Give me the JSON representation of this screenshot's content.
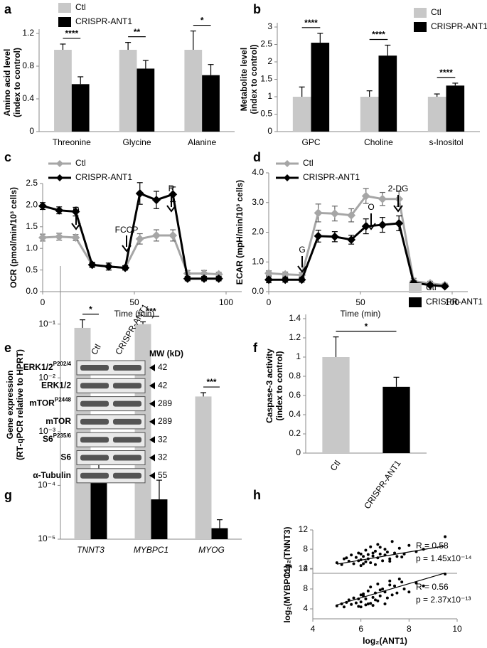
{
  "panel_labels": [
    "a",
    "b",
    "c",
    "d",
    "e",
    "f",
    "g",
    "h"
  ],
  "chart_data": [
    {
      "type": "bar",
      "y_label": [
        "Amino acid level",
        "(index to control)"
      ],
      "categories": [
        "Threonine",
        "Glycine",
        "Alanine"
      ],
      "series": [
        {
          "name": "Ctl",
          "color": "#c8c8c8",
          "values": [
            1,
            1,
            1
          ],
          "errors": [
            0.07,
            0.09,
            0.23
          ]
        },
        {
          "name": "CRISPR-ANT1",
          "color": "#000000",
          "values": [
            0.58,
            0.77,
            0.69
          ],
          "errors": [
            0.09,
            0.1,
            0.13
          ]
        }
      ],
      "significance": [
        "****",
        "**",
        "*"
      ],
      "ylim": [
        0,
        1.2
      ],
      "yticks": [
        0,
        0.4,
        0.8,
        1.2
      ]
    },
    {
      "type": "bar",
      "y_label": [
        "Metabolite level",
        "(index to control)"
      ],
      "categories": [
        "GPC",
        "Choline",
        "s-Inositol"
      ],
      "series": [
        {
          "name": "Ctl",
          "color": "#c8c8c8",
          "values": [
            1,
            1,
            1
          ],
          "errors": [
            0.28,
            0.17,
            0.08
          ]
        },
        {
          "name": "CRISPR-ANT1",
          "color": "#000000",
          "values": [
            2.55,
            2.18,
            1.32
          ],
          "errors": [
            0.27,
            0.3,
            0.07
          ]
        }
      ],
      "significance": [
        "****",
        "****",
        "****"
      ],
      "ylim": [
        0,
        3
      ],
      "yticks": [
        0,
        0.5,
        1,
        1.5,
        2,
        2.5,
        3
      ]
    },
    {
      "type": "line",
      "y_label": [
        "OCR (pmol/min/10³ cells)"
      ],
      "x_label": "Time (min)",
      "x": [
        0,
        9,
        18,
        27,
        36,
        45,
        53,
        62,
        71,
        79,
        88,
        96
      ],
      "series": [
        {
          "name": "Ctl",
          "color": "#a6a6a6",
          "values": [
            1.25,
            1.27,
            1.25,
            0.62,
            0.58,
            0.55,
            1.22,
            1.3,
            1.3,
            0.42,
            0.42,
            0.4
          ],
          "errors": [
            0.08,
            0.08,
            0.07,
            0.05,
            0.08,
            0.05,
            0.12,
            0.13,
            0.13,
            0.07,
            0.07,
            0.05
          ]
        },
        {
          "name": "CRISPR-ANT1",
          "color": "#000000",
          "values": [
            1.98,
            1.88,
            1.85,
            0.62,
            0.58,
            0.55,
            2.27,
            2.12,
            2.25,
            0.3,
            0.3,
            0.3
          ],
          "errors": [
            0.08,
            0.08,
            0.1,
            0.06,
            0.08,
            0.05,
            0.25,
            0.2,
            0.17,
            0.05,
            0.05,
            0.05
          ]
        }
      ],
      "annotations": [
        "O",
        "FCCP",
        "R"
      ],
      "xlim": [
        0,
        100
      ],
      "xticks": [
        0,
        50,
        100
      ],
      "ylim": [
        0,
        2.5
      ],
      "yticks": [
        {
          "value": 0,
          "label": "0.0"
        },
        0.5,
        {
          "value": 1,
          "label": "1.0"
        },
        1.5,
        {
          "value": 2,
          "label": "2.0"
        },
        2.5
      ]
    },
    {
      "type": "line",
      "y_label": [
        "ECAR (mpH/min/10³ cells)"
      ],
      "x_label": "Time (min)",
      "x": [
        0,
        9,
        18,
        27,
        36,
        45,
        53,
        62,
        71,
        79,
        88,
        96
      ],
      "series": [
        {
          "name": "Ctl",
          "color": "#a6a6a6",
          "values": [
            0.62,
            0.58,
            0.56,
            2.65,
            2.63,
            2.57,
            3.22,
            3.12,
            3.12,
            0.35,
            0.28,
            0.22
          ],
          "errors": [
            0.08,
            0.08,
            0.08,
            0.3,
            0.25,
            0.22,
            0.25,
            0.22,
            0.25,
            0.1,
            0.07,
            0.06
          ]
        },
        {
          "name": "CRISPR-ANT1",
          "color": "#000000",
          "values": [
            0.4,
            0.4,
            0.4,
            1.87,
            1.85,
            1.75,
            2.2,
            2.25,
            2.3,
            0.3,
            0.22,
            0.18
          ],
          "errors": [
            0.1,
            0.08,
            0.08,
            0.2,
            0.17,
            0.15,
            0.25,
            0.25,
            0.25,
            0.06,
            0.05,
            0.05
          ]
        }
      ],
      "annotations": [
        "G",
        "O",
        "2-DG"
      ],
      "xlim": [
        0,
        100
      ],
      "xticks": [
        0,
        50,
        100
      ],
      "ylim": [
        0,
        4
      ],
      "yticks": [
        {
          "value": 0,
          "label": "0.0"
        },
        {
          "value": 1,
          "label": "1.0"
        },
        {
          "value": 2,
          "label": "2.0"
        },
        {
          "value": 3,
          "label": "3.0"
        },
        {
          "value": 4,
          "label": "4.0"
        }
      ]
    },
    {
      "type": "bar",
      "y_label": [
        "Caspase-3 activity",
        "(index to control)"
      ],
      "categories": [
        "Ctl",
        "CRISPR-ANT1"
      ],
      "rotated_labels": true,
      "values": [
        1,
        0.69
      ],
      "errors": [
        0.21,
        0.1
      ],
      "colors": [
        "#c8c8c8",
        "#000000"
      ],
      "significance": [
        "*"
      ],
      "ylim": [
        0,
        1.4
      ],
      "yticks": [
        0,
        0.2,
        0.4,
        0.6,
        0.8,
        1,
        1.2,
        1.4
      ]
    },
    {
      "type": "bar",
      "y_label": [
        "Gene expression",
        "(RT-qPCR relative to HPRT)"
      ],
      "categories": [
        "TNNT3",
        "MYBPC1",
        "MYOG"
      ],
      "italic_labels": true,
      "log_scale": true,
      "series": [
        {
          "name": "Ctl",
          "color": "#c8c8c8",
          "values": [
            0.085,
            0.1,
            0.0045
          ],
          "errors": [
            0.035,
            0.01,
            0.0008
          ]
        },
        {
          "name": "CRISPR-ANT1",
          "color": "#000000",
          "values": [
            0.00017,
            5.5e-05,
            1.6e-05
          ],
          "errors": [
            0.00019,
            7e-05,
            7e-06
          ]
        }
      ],
      "significance": [
        "*",
        "***",
        "***"
      ],
      "ylim": [
        1e-05,
        1
      ],
      "yticks": [
        {
          "value": 1e-05,
          "label": "10⁻⁵"
        },
        {
          "value": 0.0001,
          "label": "10⁻⁴"
        },
        {
          "value": 0.001,
          "label": "10⁻³"
        },
        {
          "value": 0.01,
          "label": "10⁻²"
        },
        {
          "value": 0.1,
          "label": "10⁻¹"
        }
      ]
    },
    {
      "type": "scatter",
      "y_label": [
        "log₂(TNNT3)"
      ],
      "color": "#000000",
      "x": [
        5.0,
        5.2,
        5.3,
        5.5,
        5.6,
        5.7,
        5.8,
        5.9,
        6.0,
        6.0,
        6.1,
        6.2,
        6.2,
        6.3,
        6.4,
        6.4,
        6.5,
        6.5,
        6.6,
        6.7,
        6.7,
        6.8,
        6.9,
        7.0,
        7.0,
        7.1,
        7.2,
        7.3,
        7.4,
        7.5,
        7.6,
        7.8,
        8.0,
        8.3,
        8.6,
        9.5,
        5.4,
        6.1,
        6.6,
        7.2,
        6.3,
        5.9,
        6.8,
        7.7,
        6.0
      ],
      "y": [
        5.2,
        4.8,
        6.0,
        5.5,
        6.8,
        5.0,
        6.3,
        7.2,
        5.8,
        4.6,
        6.5,
        7.8,
        5.4,
        6.0,
        8.5,
        5.2,
        6.6,
        7.2,
        4.8,
        6.2,
        9.0,
        7.0,
        5.6,
        6.8,
        8.0,
        7.4,
        6.0,
        9.6,
        7.2,
        6.5,
        8.2,
        7.0,
        8.8,
        7.5,
        8.0,
        10.6,
        6.2,
        5.0,
        7.6,
        5.5,
        6.9,
        5.6,
        8.4,
        6.4,
        7.0
      ],
      "fit": {
        "x": [
          5,
          9.5
        ],
        "y": [
          4.9,
          8.7
        ]
      },
      "annotations": [
        "R = 0.58",
        "p = 1.45x10⁻¹⁴"
      ],
      "xlim": [
        4,
        10
      ],
      "ylim": [
        3,
        12
      ],
      "yticks": [
        4,
        8,
        12
      ]
    },
    {
      "type": "scatter",
      "y_label": [
        "log₂(MYBPC1)"
      ],
      "x_label": "log₂(ANT1)",
      "color": "#000000",
      "x": [
        5.0,
        5.2,
        5.3,
        5.5,
        5.6,
        5.7,
        5.8,
        5.9,
        6.0,
        6.0,
        6.1,
        6.2,
        6.2,
        6.3,
        6.4,
        6.4,
        6.5,
        6.5,
        6.6,
        6.7,
        6.7,
        6.8,
        6.9,
        7.0,
        7.0,
        7.1,
        7.2,
        7.3,
        7.4,
        7.5,
        7.6,
        7.8,
        8.0,
        8.3,
        8.6,
        9.5,
        5.4,
        6.1,
        6.6,
        7.2,
        6.3,
        5.9,
        6.8,
        7.7,
        6.0
      ],
      "y": [
        4.6,
        5.0,
        4.4,
        5.8,
        4.9,
        6.2,
        5.2,
        4.5,
        6.8,
        5.4,
        7.0,
        4.8,
        6.0,
        7.6,
        5.1,
        8.4,
        6.3,
        4.7,
        7.2,
        5.6,
        9.0,
        6.6,
        8.0,
        5.0,
        7.4,
        6.2,
        9.6,
        6.8,
        8.6,
        7.2,
        10.0,
        8.0,
        7.4,
        9.2,
        8.6,
        11.0,
        5.3,
        6.6,
        5.8,
        8.8,
        5.0,
        6.0,
        7.8,
        9.4,
        4.4
      ],
      "fit": {
        "x": [
          5,
          9.5
        ],
        "y": [
          4.8,
          11.2
        ]
      },
      "annotations": [
        "R = 0.56",
        "p = 2.37x10⁻¹³"
      ],
      "xlim": [
        4,
        10
      ],
      "xticks": [
        4,
        6,
        8,
        10
      ],
      "ylim": [
        2,
        12
      ],
      "yticks": [
        4,
        8,
        12
      ]
    }
  ],
  "blot": {
    "lanes": [
      "Ctl",
      "CRISPR-ANT1"
    ],
    "mw_header": "MW (kD)",
    "rows": [
      {
        "label": "ERK1/2",
        "sup": "P202/4",
        "mw": 42
      },
      {
        "label": "ERK1/2",
        "mw": 42
      },
      {
        "label": "mTOR",
        "sup": "P2448",
        "mw": 289
      },
      {
        "label": "mTOR",
        "mw": 289
      },
      {
        "label": "S6",
        "sup": "P235/6",
        "mw": 32
      },
      {
        "label": "S6",
        "mw": 32
      },
      {
        "label": "α-Tubulin",
        "mw": 55
      }
    ]
  }
}
